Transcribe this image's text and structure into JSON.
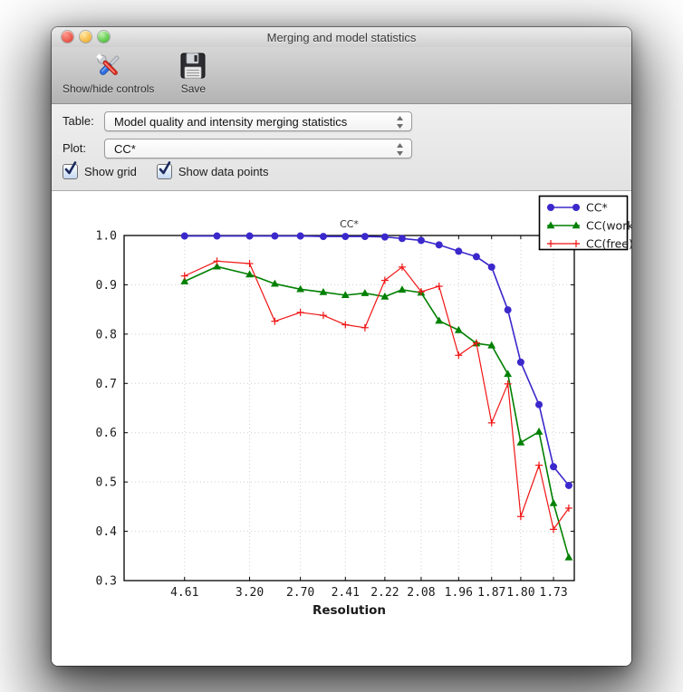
{
  "window": {
    "title": "Merging and model statistics",
    "toolbar": [
      {
        "label": "Show/hide controls",
        "icon": "tools-icon"
      },
      {
        "label": "Save",
        "icon": "save-icon"
      }
    ],
    "controls": {
      "table_label": "Table:",
      "table_value": "Model quality and intensity merging statistics",
      "plot_label": "Plot:",
      "plot_value": "CC*",
      "checkboxes": [
        {
          "label": "Show grid",
          "checked": true
        },
        {
          "label": "Show data points",
          "checked": true
        }
      ]
    }
  },
  "chart_data": {
    "type": "line",
    "title": "CC*",
    "xlabel": "Resolution",
    "ylabel": "",
    "ylim": [
      0.3,
      1.0
    ],
    "yticks": [
      0.3,
      0.4,
      0.5,
      0.6,
      0.7,
      0.8,
      0.9,
      1.0
    ],
    "xticklabels": [
      "4.61",
      "3.20",
      "2.70",
      "2.41",
      "2.22",
      "2.08",
      "1.96",
      "1.87",
      "1.80",
      "1.73"
    ],
    "x_axis_scale": "linear in 1/d^2 (resolution in Angstrom)",
    "xlim_s2": [
      0.0,
      0.3503
    ],
    "resolution_bins_d": [
      4.61,
      3.72,
      3.2,
      2.92,
      2.7,
      2.54,
      2.41,
      2.31,
      2.22,
      2.15,
      2.08,
      2.02,
      1.96,
      1.91,
      1.87,
      1.83,
      1.8,
      1.76,
      1.73,
      1.7
    ],
    "grid": true,
    "show_data_points": true,
    "legend_position": "upper right",
    "series": [
      {
        "name": "CC*",
        "color": "#3b28cc",
        "marker": "circle",
        "values": [
          0.999,
          0.999,
          0.999,
          0.999,
          0.999,
          0.998,
          0.998,
          0.998,
          0.997,
          0.994,
          0.99,
          0.981,
          0.968,
          0.957,
          0.936,
          0.849,
          0.743,
          0.657,
          0.531,
          0.493
        ]
      },
      {
        "name": "CC(work)",
        "color": "#008000",
        "marker": "triangle",
        "values": [
          0.907,
          0.937,
          0.921,
          0.902,
          0.891,
          0.885,
          0.879,
          0.883,
          0.876,
          0.89,
          0.884,
          0.827,
          0.808,
          0.781,
          0.777,
          0.719,
          0.58,
          0.602,
          0.457,
          0.347
        ]
      },
      {
        "name": "CC(free)",
        "color": "#f01515",
        "marker": "plus",
        "values": [
          0.918,
          0.948,
          0.943,
          0.826,
          0.844,
          0.838,
          0.819,
          0.813,
          0.909,
          0.936,
          0.886,
          0.897,
          0.757,
          0.782,
          0.62,
          0.699,
          0.43,
          0.534,
          0.404,
          0.447
        ]
      }
    ]
  }
}
